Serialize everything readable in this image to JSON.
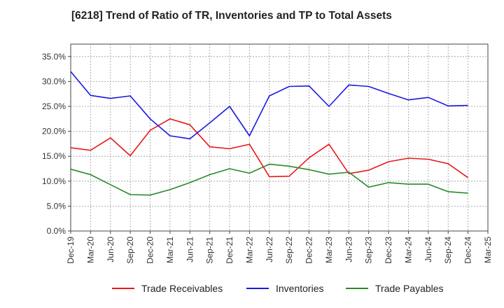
{
  "chart_data": {
    "type": "line",
    "title": "[6218]  Trend of Ratio of TR, Inventories and TP to Total Assets",
    "xlabel": "",
    "ylabel": "",
    "x_tick_labels": [
      "Dec-19",
      "Mar-20",
      "Jun-20",
      "Sep-20",
      "Dec-20",
      "Mar-21",
      "Jun-21",
      "Sep-21",
      "Dec-21",
      "Mar-22",
      "Jun-22",
      "Sep-22",
      "Dec-22",
      "Mar-23",
      "Jun-23",
      "Sep-23",
      "Dec-23",
      "Mar-24",
      "Jun-24",
      "Sep-24",
      "Dec-24",
      "Mar-25"
    ],
    "categories": [
      "Dec-19",
      "Mar-20",
      "Jun-20",
      "Sep-20",
      "Dec-20",
      "Mar-21",
      "Jun-21",
      "Sep-21",
      "Dec-21",
      "Mar-22",
      "Jun-22",
      "Sep-22",
      "Dec-22",
      "Mar-23",
      "Jun-23",
      "Sep-23",
      "Dec-23",
      "Mar-24",
      "Jun-24",
      "Sep-24",
      "Dec-24"
    ],
    "y_tick_labels": [
      "0.0%",
      "5.0%",
      "10.0%",
      "15.0%",
      "20.0%",
      "25.0%",
      "30.0%",
      "35.0%"
    ],
    "y_ticks": [
      0,
      5,
      10,
      15,
      20,
      25,
      30,
      35
    ],
    "ylim": [
      0,
      37.5
    ],
    "grid": true,
    "legend_position": "bottom",
    "series": [
      {
        "name": "Trade Receivables",
        "color": "#e8191a",
        "values": [
          16.7,
          16.2,
          18.7,
          15.1,
          20.2,
          22.5,
          21.3,
          16.9,
          16.5,
          17.4,
          10.9,
          11.0,
          14.7,
          17.4,
          11.5,
          12.2,
          13.9,
          14.6,
          14.4,
          13.5,
          10.7
        ]
      },
      {
        "name": "Inventories",
        "color": "#1a1ae0",
        "values": [
          32.0,
          27.2,
          26.6,
          27.1,
          22.5,
          19.1,
          18.5,
          21.7,
          25.0,
          19.1,
          27.1,
          29.0,
          29.1,
          25.0,
          29.3,
          29.0,
          27.6,
          26.3,
          26.8,
          25.1,
          25.2
        ]
      },
      {
        "name": "Trade Payables",
        "color": "#2a8a2a",
        "values": [
          12.4,
          11.3,
          9.3,
          7.3,
          7.2,
          8.3,
          9.7,
          11.3,
          12.5,
          11.6,
          13.4,
          13.0,
          12.3,
          11.4,
          11.8,
          8.8,
          9.7,
          9.4,
          9.4,
          7.9,
          7.6
        ]
      }
    ]
  }
}
